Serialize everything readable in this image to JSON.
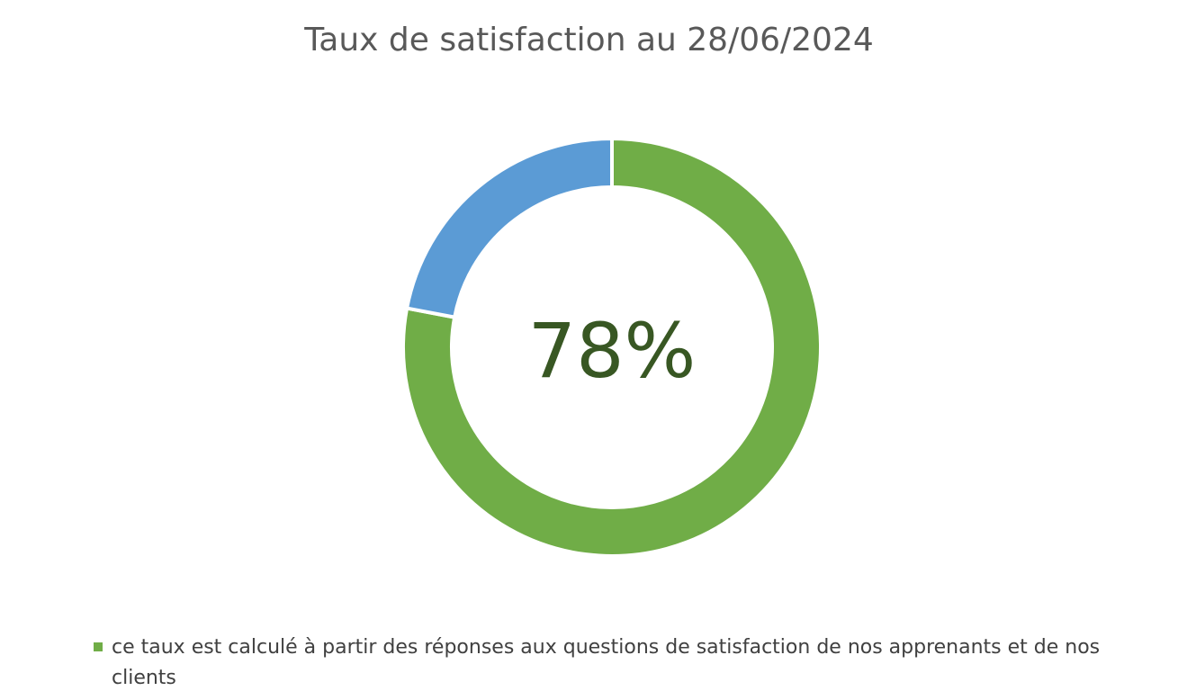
{
  "chart_data": {
    "type": "pie",
    "title": "Taux de satisfaction au 28/06/2024",
    "center_label": "78%",
    "slices": [
      {
        "name": "ce taux est calculé à partir des réponses aux questions de satisfaction de nos apprenants et de nos clients",
        "value": 78,
        "color": "#70AD47"
      },
      {
        "name": "",
        "value": 22,
        "color": "#5B9BD5"
      }
    ],
    "legend": {
      "position": "bottom",
      "entries": [
        {
          "label": "ce taux est calculé à partir des réponses aux questions de satisfaction de nos apprenants et de nos clients",
          "color": "#70AD47"
        }
      ]
    }
  }
}
